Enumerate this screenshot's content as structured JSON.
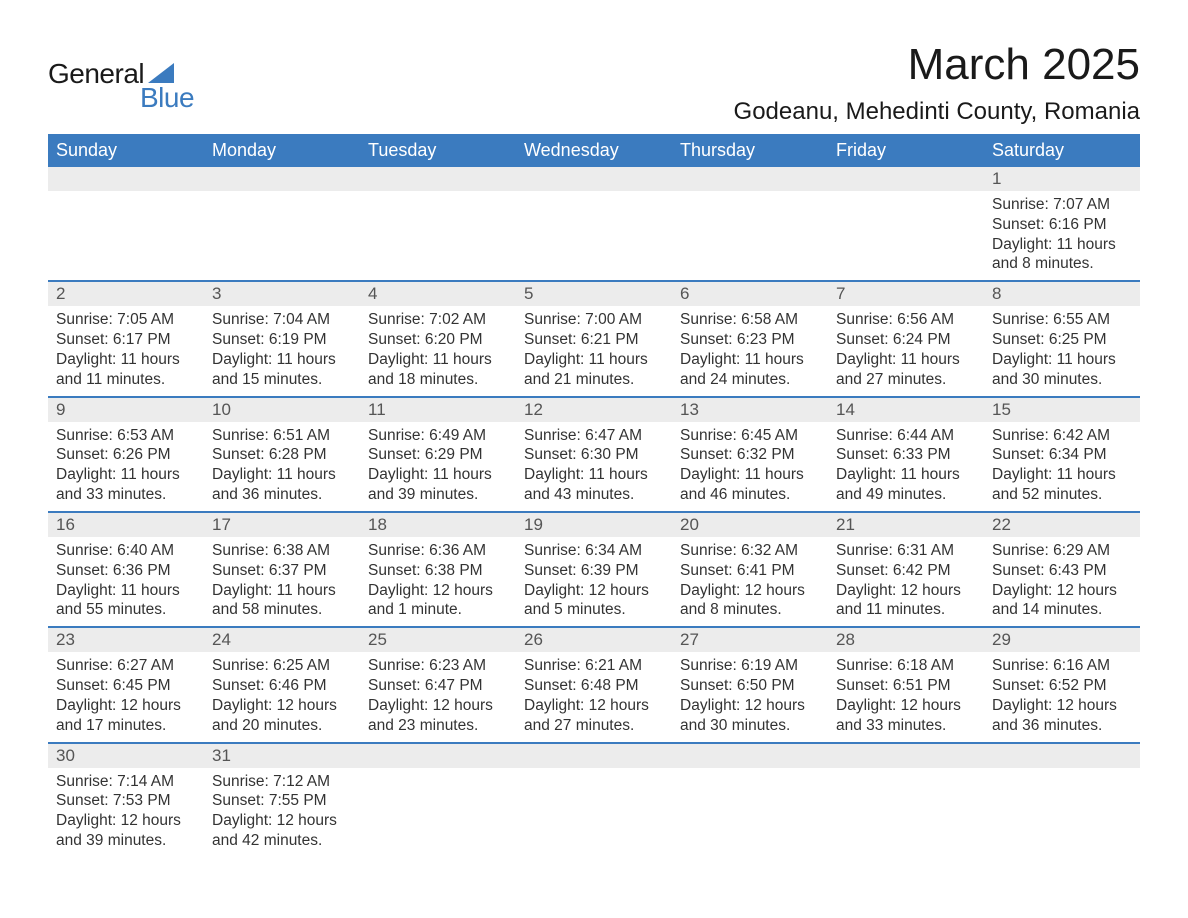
{
  "logo": {
    "top": "General",
    "bottom": "Blue",
    "accent_color": "#3b7bbf"
  },
  "title": "March 2025",
  "location": "Godeanu, Mehedinti County, Romania",
  "colors": {
    "header_bg": "#3b7bbf",
    "header_text": "#ffffff",
    "daynum_bg": "#ececec",
    "daynum_text": "#555555",
    "body_text": "#333333",
    "row_border": "#3b7bbf"
  },
  "fonts": {
    "title_size_pt": 33,
    "location_size_pt": 18,
    "header_size_pt": 14,
    "daynum_size_pt": 13,
    "body_size_pt": 12
  },
  "day_headers": [
    "Sunday",
    "Monday",
    "Tuesday",
    "Wednesday",
    "Thursday",
    "Friday",
    "Saturday"
  ],
  "weeks": [
    [
      null,
      null,
      null,
      null,
      null,
      null,
      {
        "n": "1",
        "sr": "7:07 AM",
        "ss": "6:16 PM",
        "dl": "11 hours and 8 minutes."
      }
    ],
    [
      {
        "n": "2",
        "sr": "7:05 AM",
        "ss": "6:17 PM",
        "dl": "11 hours and 11 minutes."
      },
      {
        "n": "3",
        "sr": "7:04 AM",
        "ss": "6:19 PM",
        "dl": "11 hours and 15 minutes."
      },
      {
        "n": "4",
        "sr": "7:02 AM",
        "ss": "6:20 PM",
        "dl": "11 hours and 18 minutes."
      },
      {
        "n": "5",
        "sr": "7:00 AM",
        "ss": "6:21 PM",
        "dl": "11 hours and 21 minutes."
      },
      {
        "n": "6",
        "sr": "6:58 AM",
        "ss": "6:23 PM",
        "dl": "11 hours and 24 minutes."
      },
      {
        "n": "7",
        "sr": "6:56 AM",
        "ss": "6:24 PM",
        "dl": "11 hours and 27 minutes."
      },
      {
        "n": "8",
        "sr": "6:55 AM",
        "ss": "6:25 PM",
        "dl": "11 hours and 30 minutes."
      }
    ],
    [
      {
        "n": "9",
        "sr": "6:53 AM",
        "ss": "6:26 PM",
        "dl": "11 hours and 33 minutes."
      },
      {
        "n": "10",
        "sr": "6:51 AM",
        "ss": "6:28 PM",
        "dl": "11 hours and 36 minutes."
      },
      {
        "n": "11",
        "sr": "6:49 AM",
        "ss": "6:29 PM",
        "dl": "11 hours and 39 minutes."
      },
      {
        "n": "12",
        "sr": "6:47 AM",
        "ss": "6:30 PM",
        "dl": "11 hours and 43 minutes."
      },
      {
        "n": "13",
        "sr": "6:45 AM",
        "ss": "6:32 PM",
        "dl": "11 hours and 46 minutes."
      },
      {
        "n": "14",
        "sr": "6:44 AM",
        "ss": "6:33 PM",
        "dl": "11 hours and 49 minutes."
      },
      {
        "n": "15",
        "sr": "6:42 AM",
        "ss": "6:34 PM",
        "dl": "11 hours and 52 minutes."
      }
    ],
    [
      {
        "n": "16",
        "sr": "6:40 AM",
        "ss": "6:36 PM",
        "dl": "11 hours and 55 minutes."
      },
      {
        "n": "17",
        "sr": "6:38 AM",
        "ss": "6:37 PM",
        "dl": "11 hours and 58 minutes."
      },
      {
        "n": "18",
        "sr": "6:36 AM",
        "ss": "6:38 PM",
        "dl": "12 hours and 1 minute."
      },
      {
        "n": "19",
        "sr": "6:34 AM",
        "ss": "6:39 PM",
        "dl": "12 hours and 5 minutes."
      },
      {
        "n": "20",
        "sr": "6:32 AM",
        "ss": "6:41 PM",
        "dl": "12 hours and 8 minutes."
      },
      {
        "n": "21",
        "sr": "6:31 AM",
        "ss": "6:42 PM",
        "dl": "12 hours and 11 minutes."
      },
      {
        "n": "22",
        "sr": "6:29 AM",
        "ss": "6:43 PM",
        "dl": "12 hours and 14 minutes."
      }
    ],
    [
      {
        "n": "23",
        "sr": "6:27 AM",
        "ss": "6:45 PM",
        "dl": "12 hours and 17 minutes."
      },
      {
        "n": "24",
        "sr": "6:25 AM",
        "ss": "6:46 PM",
        "dl": "12 hours and 20 minutes."
      },
      {
        "n": "25",
        "sr": "6:23 AM",
        "ss": "6:47 PM",
        "dl": "12 hours and 23 minutes."
      },
      {
        "n": "26",
        "sr": "6:21 AM",
        "ss": "6:48 PM",
        "dl": "12 hours and 27 minutes."
      },
      {
        "n": "27",
        "sr": "6:19 AM",
        "ss": "6:50 PM",
        "dl": "12 hours and 30 minutes."
      },
      {
        "n": "28",
        "sr": "6:18 AM",
        "ss": "6:51 PM",
        "dl": "12 hours and 33 minutes."
      },
      {
        "n": "29",
        "sr": "6:16 AM",
        "ss": "6:52 PM",
        "dl": "12 hours and 36 minutes."
      }
    ],
    [
      {
        "n": "30",
        "sr": "7:14 AM",
        "ss": "7:53 PM",
        "dl": "12 hours and 39 minutes."
      },
      {
        "n": "31",
        "sr": "7:12 AM",
        "ss": "7:55 PM",
        "dl": "12 hours and 42 minutes."
      },
      null,
      null,
      null,
      null,
      null
    ]
  ],
  "labels": {
    "sunrise": "Sunrise:",
    "sunset": "Sunset:",
    "daylight": "Daylight:"
  }
}
